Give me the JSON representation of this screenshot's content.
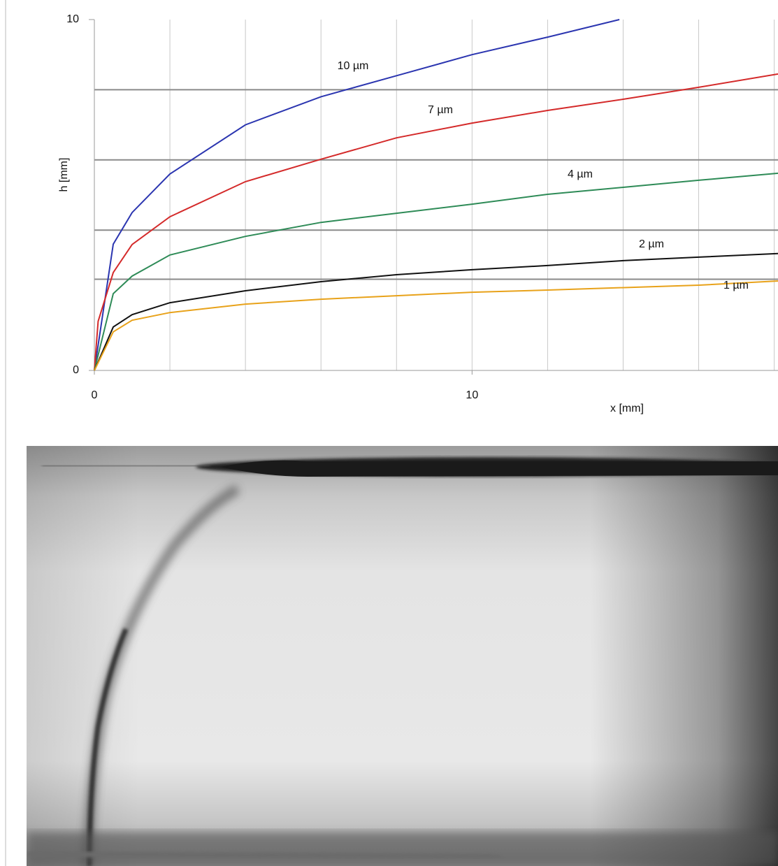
{
  "chart_data": {
    "type": "line",
    "xlabel": "x [mm]",
    "ylabel": "h [mm]",
    "xlim": [
      0,
      18.1
    ],
    "ylim": [
      0,
      10
    ],
    "xticks": [
      0,
      10
    ],
    "yticks": [
      0,
      10
    ],
    "grid": true,
    "xgrid": [
      2,
      4,
      6,
      8,
      10,
      12,
      14,
      16,
      18
    ],
    "ygrid": [
      2.6,
      4,
      6,
      8
    ],
    "series": [
      {
        "name": "10 µm",
        "color": "#2b35b0",
        "x": [
          0,
          0.5,
          1,
          2,
          4,
          6,
          8,
          10,
          12,
          13.9
        ],
        "values": [
          0,
          3.6,
          4.5,
          5.6,
          7.0,
          7.8,
          8.4,
          9.0,
          9.5,
          10
        ]
      },
      {
        "name": "7 µm",
        "color": "#d42a2a",
        "x": [
          0,
          0.1,
          0.5,
          1,
          2,
          4,
          6,
          8,
          10,
          12,
          14,
          16,
          18.1
        ],
        "values": [
          0,
          1.4,
          2.79,
          3.59,
          4.38,
          5.38,
          6.02,
          6.63,
          7.05,
          7.41,
          7.73,
          8.07,
          8.45
        ]
      },
      {
        "name": "4 µm",
        "color": "#2e8b57",
        "x": [
          0,
          0.5,
          1,
          2,
          4,
          6,
          8,
          10,
          12,
          14,
          16,
          18.1
        ],
        "values": [
          0,
          2.19,
          2.69,
          3.29,
          3.82,
          4.22,
          4.48,
          4.74,
          5.02,
          5.22,
          5.42,
          5.62
        ]
      },
      {
        "name": "2 µm",
        "color": "#111111",
        "x": [
          0,
          0.5,
          1,
          2,
          4,
          6,
          8,
          10,
          12,
          14,
          16,
          18.1
        ],
        "values": [
          0,
          1.24,
          1.59,
          1.93,
          2.27,
          2.53,
          2.73,
          2.87,
          2.99,
          3.13,
          3.23,
          3.33
        ]
      },
      {
        "name": "1 µm",
        "color": "#e8a21a",
        "x": [
          0,
          0.5,
          1,
          2,
          4,
          6,
          8,
          10,
          12,
          16,
          18.1
        ],
        "values": [
          0,
          1.1,
          1.43,
          1.65,
          1.89,
          2.03,
          2.13,
          2.23,
          2.29,
          2.43,
          2.55
        ]
      }
    ]
  }
}
